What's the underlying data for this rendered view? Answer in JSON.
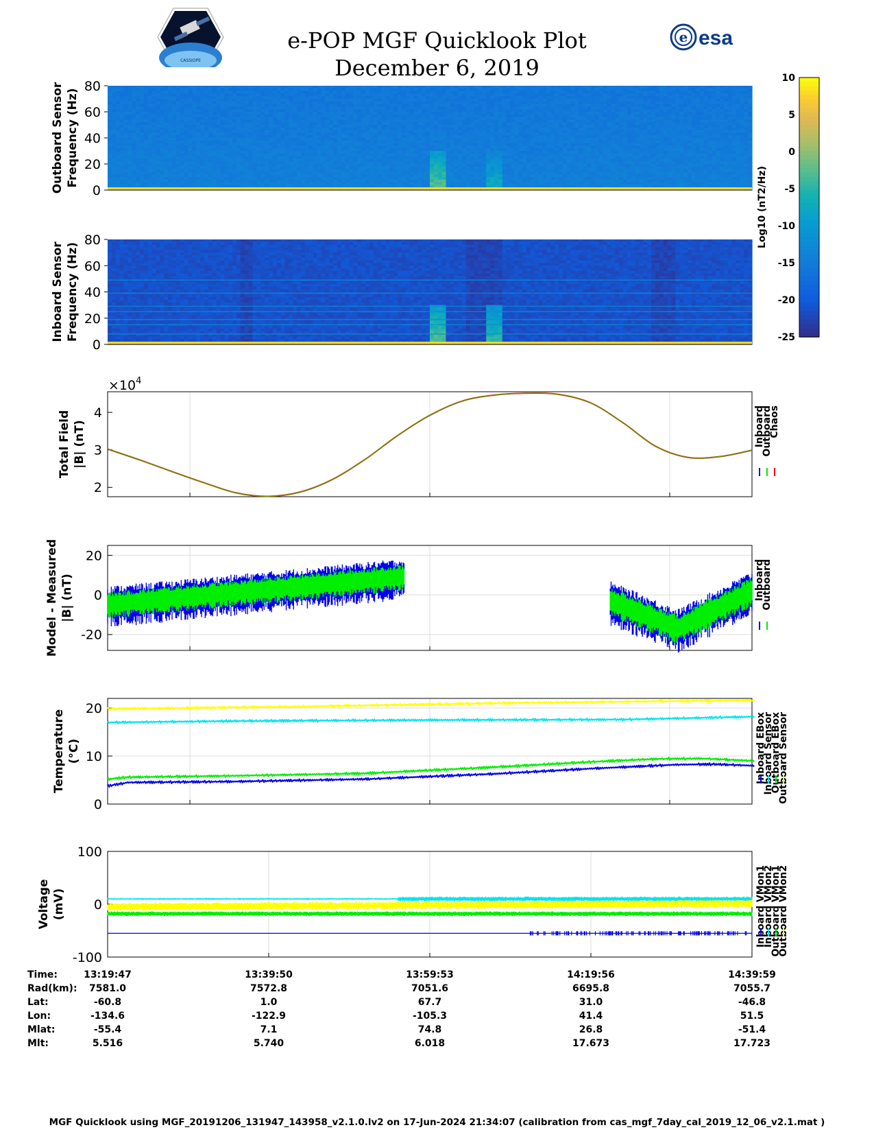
{
  "header": {
    "title": "e-POP MGF Quicklook Plot",
    "date": "December 6, 2019",
    "esa_logo_text": "esa",
    "cassiope_logo_text": "CASSIOPE"
  },
  "colors": {
    "inboard": "#0000ee",
    "outboard": "#00ee00",
    "chaos": "#ee0000",
    "ebox_inboard": "#0000ee",
    "ebox_outboard": "#00ee00",
    "sensor_inboard": "#00e5ee",
    "sensor_outboard": "#ffff00",
    "grid": "#dcdcdc"
  },
  "chart_data": [
    {
      "type": "heatmap",
      "panel": "outboard-spectrogram",
      "ylabel": [
        "Outboard Sensor",
        "Frequency (Hz)"
      ],
      "ylim": [
        0,
        80
      ],
      "yticks": [
        0,
        20,
        40,
        60,
        80
      ],
      "colormap": "parula",
      "background_log10": -14,
      "bursts": [
        {
          "x": 0.51,
          "level": -2
        },
        {
          "x": 0.595,
          "level": -6
        }
      ]
    },
    {
      "type": "heatmap",
      "panel": "inboard-spectrogram",
      "ylabel": [
        "Inboard Sensor",
        "Frequency (Hz)"
      ],
      "ylim": [
        0,
        80
      ],
      "yticks": [
        0,
        20,
        40,
        60,
        80
      ],
      "colormap": "parula",
      "background_log10": -21,
      "harmonic_lines_hz": [
        8,
        15,
        19,
        25,
        29,
        39,
        49
      ],
      "bursts": [
        {
          "x": 0.51,
          "level": -2
        },
        {
          "x": 0.595,
          "level": -4
        }
      ]
    },
    {
      "type": "colorbar",
      "label": "Log10 (nT2/Hz)",
      "range": [
        -25,
        10
      ],
      "ticks": [
        "10",
        "5",
        "0",
        "-5",
        "-10",
        "-15",
        "-20",
        "-25"
      ]
    },
    {
      "type": "line",
      "panel": "total-field",
      "ylabel": [
        "Total Field",
        "|B| (nT)"
      ],
      "exponent_label": "×10",
      "exponent_power": "4",
      "ylim": [
        1.75,
        4.55
      ],
      "yticks": [
        "2",
        "3",
        "4"
      ],
      "x": [
        0,
        0.05,
        0.1,
        0.15,
        0.2,
        0.25,
        0.3,
        0.35,
        0.4,
        0.45,
        0.5,
        0.55,
        0.6,
        0.65,
        0.7,
        0.75,
        0.8,
        0.85,
        0.9,
        0.95,
        1.0
      ],
      "y": [
        3.02,
        2.73,
        2.42,
        2.12,
        1.85,
        1.76,
        1.88,
        2.22,
        2.75,
        3.38,
        3.92,
        4.3,
        4.46,
        4.51,
        4.48,
        4.25,
        3.72,
        3.1,
        2.8,
        2.82,
        2.99
      ],
      "legend": [
        "Inboard",
        "Outboard",
        "Chaos"
      ],
      "legend_keys": [
        "inboard",
        "outboard",
        "chaos"
      ]
    },
    {
      "type": "line",
      "panel": "model-minus-measured",
      "ylabel": [
        "Model - Measured",
        "|B| (nT)"
      ],
      "ylim": [
        -28,
        25
      ],
      "yticks": [
        "20",
        "0",
        "-20"
      ],
      "segments": [
        {
          "x_start": 0.0,
          "x_end": 0.46,
          "center_start": -4,
          "center_end": 10,
          "outboard_amp": 9,
          "inboard_amp": 14
        },
        {
          "x_start": 0.78,
          "x_end": 1.0,
          "center_start": -2,
          "center_end": 3,
          "center_mid": -16,
          "x_mid": 0.885,
          "outboard_amp": 10,
          "inboard_amp": 15
        }
      ],
      "legend": [
        "Inboard",
        "Outboard"
      ],
      "legend_keys": [
        "inboard",
        "outboard"
      ]
    },
    {
      "type": "line",
      "panel": "temperature",
      "ylabel": [
        "Temperature",
        "(°C)"
      ],
      "ylim": [
        0,
        22
      ],
      "yticks": [
        "0",
        "10",
        "20"
      ],
      "series": [
        {
          "name": "Inboard EBox",
          "color_key": "ebox_inboard",
          "x": [
            0,
            0.03,
            0.2,
            0.4,
            0.6,
            0.75,
            0.88,
            0.94,
            1.0
          ],
          "y": [
            3.8,
            4.5,
            4.7,
            5.2,
            6.3,
            7.4,
            8.2,
            8.3,
            8.0
          ]
        },
        {
          "name": "Inboard Sensor",
          "color_key": "sensor_inboard",
          "x": [
            0,
            0.2,
            0.5,
            0.8,
            1.0
          ],
          "y": [
            17.0,
            17.3,
            17.5,
            17.6,
            18.2
          ]
        },
        {
          "name": "Outboard EBox",
          "color_key": "ebox_outboard",
          "x": [
            0,
            0.03,
            0.2,
            0.4,
            0.6,
            0.75,
            0.85,
            0.92,
            1.0
          ],
          "y": [
            5.2,
            5.6,
            5.9,
            6.4,
            7.7,
            8.8,
            9.4,
            9.5,
            9.0
          ]
        },
        {
          "name": "Outboard Sensor",
          "color_key": "sensor_outboard",
          "x": [
            0,
            0.3,
            0.6,
            0.85,
            1.0
          ],
          "y": [
            19.8,
            20.3,
            21.0,
            21.4,
            21.6
          ]
        }
      ],
      "legend": [
        "Inboard EBox",
        "Inboard Sensor",
        "Outboard EBox",
        "Outboard Sensor"
      ]
    },
    {
      "type": "line",
      "panel": "voltage",
      "ylabel": [
        "Voltage",
        "(mV)"
      ],
      "ylim": [
        -100,
        100
      ],
      "yticks": [
        "100",
        "0",
        "-100"
      ],
      "series": [
        {
          "name": "Inboard VMon1",
          "color_key": "ebox_inboard",
          "level": -55
        },
        {
          "name": "Inboard VMon2",
          "color_key": "sensor_inboard",
          "level": 10
        },
        {
          "name": "Outboard VMon1",
          "color_key": "ebox_outboard",
          "level": -18
        },
        {
          "name": "Outboard VMon2",
          "color_key": "sensor_outboard",
          "level": -5
        }
      ],
      "legend": [
        "Inboard VMon1",
        "Inboard VMon2",
        "Outboard VMon1",
        "Outboard VMon2"
      ]
    }
  ],
  "ephemeris": {
    "labels": [
      "Time:",
      "Rad(km):",
      "Lat:",
      "Lon:",
      "Mlat:",
      "Mlt:"
    ],
    "columns": [
      [
        "13:19:47",
        "7581.0",
        "-60.8",
        "-134.6",
        "-55.4",
        "5.516"
      ],
      [
        "13:39:50",
        "7572.8",
        "1.0",
        "-122.9",
        "7.1",
        "5.740"
      ],
      [
        "13:59:53",
        "7051.6",
        "67.7",
        "-105.3",
        "74.8",
        "6.018"
      ],
      [
        "14:19:56",
        "6695.8",
        "31.0",
        "41.4",
        "26.8",
        "17.673"
      ],
      [
        "14:39:59",
        "7055.7",
        "-46.8",
        "51.5",
        "-51.4",
        "17.723"
      ]
    ]
  },
  "footer": "MGF Quicklook using MGF_20191206_131947_143958_v2.1.0.lv2 on 17-Jun-2024 21:34:07 (calibration from cas_mgf_7day_cal_2019_12_06_v2.1.mat )"
}
